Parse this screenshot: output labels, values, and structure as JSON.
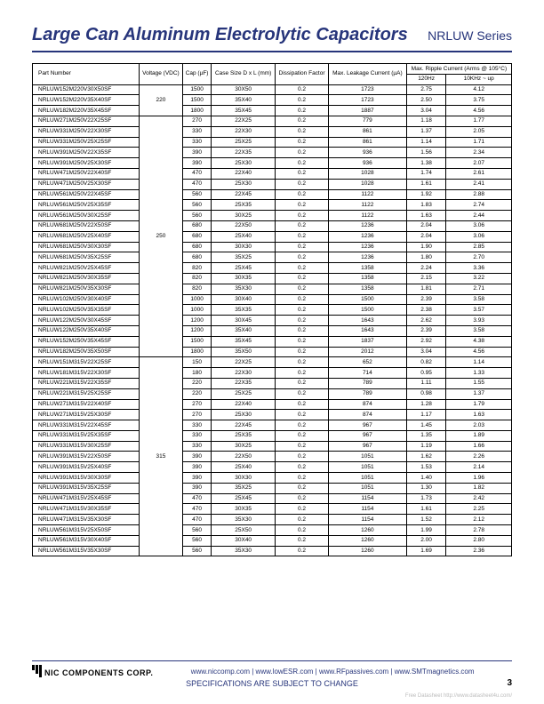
{
  "header": {
    "title": "Large Can Aluminum Electrolytic Capacitors",
    "series": "NRLUW Series"
  },
  "table": {
    "headers": {
      "part": "Part Number",
      "voltage": "Voltage (VDC)",
      "cap": "Cap (µF)",
      "case": "Case Size D x L (mm)",
      "dissipation": "Dissipation Factor",
      "leakage": "Max. Leakage Current (µA)",
      "ripple": "Max. Ripple Current (Arms @ 105°C)",
      "r120": "120Hz",
      "r10k": "10KHz ~ up"
    },
    "groups": [
      {
        "voltage": "220",
        "rows": [
          [
            "NRLUW152M220V30X50SF",
            "1500",
            "30X50",
            "0.2",
            "1723",
            "2.75",
            "4.12"
          ],
          [
            "NRLUW152M220V35X40SF",
            "1500",
            "35X40",
            "0.2",
            "1723",
            "2.50",
            "3.75"
          ],
          [
            "NRLUW182M220V35X45SF",
            "1800",
            "35X45",
            "0.2",
            "1887",
            "3.04",
            "4.56"
          ]
        ]
      },
      {
        "voltage": "250",
        "rows": [
          [
            "NRLUW271M250V22X25SF",
            "270",
            "22X25",
            "0.2",
            "779",
            "1.18",
            "1.77"
          ],
          [
            "NRLUW331M250V22X30SF",
            "330",
            "22X30",
            "0.2",
            "861",
            "1.37",
            "2.05"
          ],
          [
            "NRLUW331M250V25X25SF",
            "330",
            "25X25",
            "0.2",
            "861",
            "1.14",
            "1.71"
          ],
          [
            "NRLUW391M250V22X35SF",
            "390",
            "22X35",
            "0.2",
            "936",
            "1.56",
            "2.34"
          ],
          [
            "NRLUW391M250V25X30SF",
            "390",
            "25X30",
            "0.2",
            "936",
            "1.38",
            "2.07"
          ],
          [
            "NRLUW471M250V22X40SF",
            "470",
            "22X40",
            "0.2",
            "1028",
            "1.74",
            "2.61"
          ],
          [
            "NRLUW471M250V25X30SF",
            "470",
            "25X30",
            "0.2",
            "1028",
            "1.61",
            "2.41"
          ],
          [
            "NRLUW561M250V22X45SF",
            "560",
            "22X45",
            "0.2",
            "1122",
            "1.92",
            "2.88"
          ],
          [
            "NRLUW561M250V25X35SF",
            "560",
            "25X35",
            "0.2",
            "1122",
            "1.83",
            "2.74"
          ],
          [
            "NRLUW561M250V30X25SF",
            "560",
            "30X25",
            "0.2",
            "1122",
            "1.63",
            "2.44"
          ],
          [
            "NRLUW681M250V22X50SF",
            "680",
            "22X50",
            "0.2",
            "1236",
            "2.04",
            "3.06"
          ],
          [
            "NRLUW681M250V25X40SF",
            "680",
            "25X40",
            "0.2",
            "1236",
            "2.04",
            "3.06"
          ],
          [
            "NRLUW681M250V30X30SF",
            "680",
            "30X30",
            "0.2",
            "1236",
            "1.90",
            "2.85"
          ],
          [
            "NRLUW681M250V35X25SF",
            "680",
            "35X25",
            "0.2",
            "1236",
            "1.80",
            "2.70"
          ],
          [
            "NRLUW821M250V25X45SF",
            "820",
            "25X45",
            "0.2",
            "1358",
            "2.24",
            "3.36"
          ],
          [
            "NRLUW821M250V30X35SF",
            "820",
            "30X35",
            "0.2",
            "1358",
            "2.15",
            "3.22"
          ],
          [
            "NRLUW821M250V35X30SF",
            "820",
            "35X30",
            "0.2",
            "1358",
            "1.81",
            "2.71"
          ],
          [
            "NRLUW102M250V30X40SF",
            "1000",
            "30X40",
            "0.2",
            "1500",
            "2.39",
            "3.58"
          ],
          [
            "NRLUW102M250V35X35SF",
            "1000",
            "35X35",
            "0.2",
            "1500",
            "2.38",
            "3.57"
          ],
          [
            "NRLUW122M250V30X45SF",
            "1200",
            "30X45",
            "0.2",
            "1643",
            "2.62",
            "3.93"
          ],
          [
            "NRLUW122M250V35X40SF",
            "1200",
            "35X40",
            "0.2",
            "1643",
            "2.39",
            "3.58"
          ],
          [
            "NRLUW152M250V35X45SF",
            "1500",
            "35X45",
            "0.2",
            "1837",
            "2.92",
            "4.38"
          ],
          [
            "NRLUW182M250V35X50SF",
            "1800",
            "35X50",
            "0.2",
            "2012",
            "3.04",
            "4.56"
          ]
        ]
      },
      {
        "voltage": "315",
        "rows": [
          [
            "NRLUW151M315V22X25SF",
            "150",
            "22X25",
            "0.2",
            "652",
            "0.82",
            "1.14"
          ],
          [
            "NRLUW181M315V22X30SF",
            "180",
            "22X30",
            "0.2",
            "714",
            "0.95",
            "1.33"
          ],
          [
            "NRLUW221M315V22X35SF",
            "220",
            "22X35",
            "0.2",
            "789",
            "1.11",
            "1.55"
          ],
          [
            "NRLUW221M315V25X25SF",
            "220",
            "25X25",
            "0.2",
            "789",
            "0.98",
            "1.37"
          ],
          [
            "NRLUW271M315V22X40SF",
            "270",
            "22X40",
            "0.2",
            "874",
            "1.28",
            "1.79"
          ],
          [
            "NRLUW271M315V25X30SF",
            "270",
            "25X30",
            "0.2",
            "874",
            "1.17",
            "1.63"
          ],
          [
            "NRLUW331M315V22X45SF",
            "330",
            "22X45",
            "0.2",
            "967",
            "1.45",
            "2.03"
          ],
          [
            "NRLUW331M315V25X35SF",
            "330",
            "25X35",
            "0.2",
            "967",
            "1.35",
            "1.89"
          ],
          [
            "NRLUW331M315V30X25SF",
            "330",
            "30X25",
            "0.2",
            "967",
            "1.19",
            "1.66"
          ],
          [
            "NRLUW391M315V22X50SF",
            "390",
            "22X50",
            "0.2",
            "1051",
            "1.62",
            "2.26"
          ],
          [
            "NRLUW391M315V25X40SF",
            "390",
            "25X40",
            "0.2",
            "1051",
            "1.53",
            "2.14"
          ],
          [
            "NRLUW391M315V30X30SF",
            "390",
            "30X30",
            "0.2",
            "1051",
            "1.40",
            "1.96"
          ],
          [
            "NRLUW391M315V35X25SF",
            "390",
            "35X25",
            "0.2",
            "1051",
            "1.30",
            "1.82"
          ],
          [
            "NRLUW471M315V25X45SF",
            "470",
            "25X45",
            "0.2",
            "1154",
            "1.73",
            "2.42"
          ],
          [
            "NRLUW471M315V30X35SF",
            "470",
            "30X35",
            "0.2",
            "1154",
            "1.61",
            "2.25"
          ],
          [
            "NRLUW471M315V35X30SF",
            "470",
            "35X30",
            "0.2",
            "1154",
            "1.52",
            "2.12"
          ],
          [
            "NRLUW561M315V25X50SF",
            "560",
            "25X50",
            "0.2",
            "1260",
            "1.99",
            "2.78"
          ],
          [
            "NRLUW561M315V30X40SF",
            "560",
            "30X40",
            "0.2",
            "1260",
            "2.00",
            "2.80"
          ],
          [
            "NRLUW561M315V35X30SF",
            "560",
            "35X30",
            "0.2",
            "1260",
            "1.69",
            "2.36"
          ]
        ]
      }
    ]
  },
  "footer": {
    "company": "NIC COMPONENTS CORP.",
    "links": "www.niccomp.com  |  www.lowESR.com  |  www.RFpassives.com  |  www.SMTmagnetics.com",
    "note": "SPECIFICATIONS ARE SUBJECT TO CHANGE",
    "page": "3",
    "watermark": "Free Datasheet http://www.datasheet4u.com/"
  }
}
